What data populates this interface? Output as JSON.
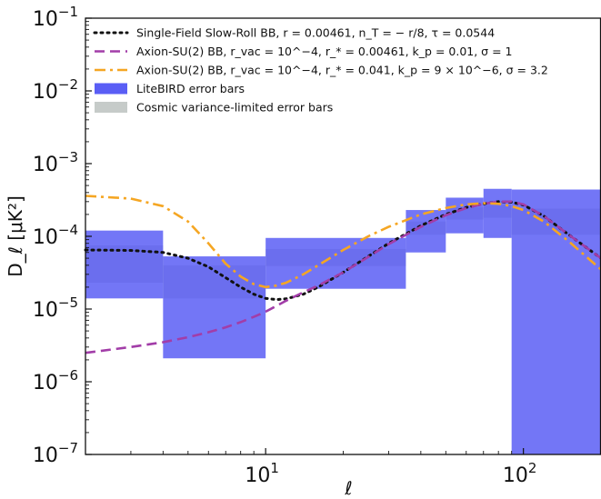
{
  "chart_data": {
    "type": "line",
    "title": "",
    "xlabel": "ℓ",
    "ylabel": "D_ℓ [μK²]",
    "xscale": "log",
    "yscale": "log",
    "xlim": [
      2,
      200
    ],
    "ylim": [
      1e-07,
      0.1
    ],
    "grid": false,
    "legend_position": "top-left",
    "x_ticks": [
      {
        "value": 10,
        "base": "10",
        "exp": "1"
      },
      {
        "value": 100,
        "base": "10",
        "exp": "2"
      }
    ],
    "y_ticks": [
      {
        "value": 1e-07,
        "base": "10",
        "exp": "−7"
      },
      {
        "value": 1e-06,
        "base": "10",
        "exp": "−6"
      },
      {
        "value": 1e-05,
        "base": "10",
        "exp": "−5"
      },
      {
        "value": 0.0001,
        "base": "10",
        "exp": "−4"
      },
      {
        "value": 0.001,
        "base": "10",
        "exp": "−3"
      },
      {
        "value": 0.01,
        "base": "10",
        "exp": "−2"
      },
      {
        "value": 0.1,
        "base": "10",
        "exp": "−1"
      }
    ],
    "series": [
      {
        "name": "Single-Field Slow-Roll BB, r = 0.00461, n_T = − r/8, τ = 0.0544",
        "style": "dotted",
        "color": "#111111",
        "x": [
          2,
          3,
          4,
          5,
          6,
          7,
          8,
          9,
          10,
          11,
          12,
          14,
          16,
          20,
          25,
          30,
          40,
          50,
          60,
          70,
          80,
          90,
          100,
          120,
          150,
          200
        ],
        "y": [
          6.5e-05,
          6.4e-05,
          6e-05,
          5e-05,
          3.8e-05,
          2.7e-05,
          2e-05,
          1.6e-05,
          1.4e-05,
          1.35e-05,
          1.38e-05,
          1.6e-05,
          2e-05,
          3.2e-05,
          5.3e-05,
          8e-05,
          0.00014,
          0.0002,
          0.00025,
          0.00028,
          0.0003,
          0.000295,
          0.00027,
          0.00019,
          0.000105,
          5e-05
        ]
      },
      {
        "name": "Axion-SU(2) BB, r_vac = 10^−4, r_* = 0.00461, k_p = 0.01, σ = 1",
        "style": "dashed",
        "color": "#a23da8",
        "x": [
          2,
          3,
          4,
          5,
          6,
          7,
          8,
          9,
          10,
          12,
          14,
          16,
          20,
          25,
          30,
          40,
          50,
          60,
          70,
          80,
          90,
          100,
          120,
          150,
          200
        ],
        "y": [
          2.5e-06,
          3e-06,
          3.5e-06,
          4.1e-06,
          4.8e-06,
          5.6e-06,
          6.6e-06,
          7.8e-06,
          9.2e-06,
          1.3e-05,
          1.7e-05,
          2.1e-05,
          3.2e-05,
          5.2e-05,
          7.8e-05,
          0.000135,
          0.000195,
          0.000245,
          0.00028,
          0.0003,
          0.0003,
          0.000275,
          0.00019,
          0.000105,
          5e-05
        ]
      },
      {
        "name": "Axion-SU(2) BB, r_vac = 10^−4, r_* = 0.041, k_p = 9 × 10^−6, σ = 3.2",
        "style": "dashdot",
        "color": "#f5a623",
        "x": [
          2,
          3,
          4,
          5,
          6,
          7,
          8,
          9,
          10,
          11,
          12,
          14,
          16,
          20,
          25,
          30,
          40,
          50,
          60,
          70,
          80,
          90,
          100,
          120,
          150,
          200
        ],
        "y": [
          0.00036,
          0.00033,
          0.00026,
          0.00016,
          8e-05,
          4.2e-05,
          2.8e-05,
          2.2e-05,
          2e-05,
          2.1e-05,
          2.3e-05,
          3e-05,
          4e-05,
          6.5e-05,
          0.0001,
          0.000135,
          0.0002,
          0.000245,
          0.000275,
          0.000285,
          0.00028,
          0.00026,
          0.00023,
          0.00016,
          8.5e-05,
          3.5e-05
        ]
      }
    ],
    "error_bars": [
      {
        "name": "LiteBIRD error bars",
        "color": "#5a5ef5",
        "bins": [
          {
            "x0": 2,
            "x1": 4,
            "y0": 1.4e-05,
            "y1": 0.00012
          },
          {
            "x0": 4,
            "x1": 10,
            "y0": 2.1e-06,
            "y1": 5.3e-05
          },
          {
            "x0": 10,
            "x1": 35,
            "y0": 1.9e-05,
            "y1": 9.5e-05
          },
          {
            "x0": 35,
            "x1": 50,
            "y0": 6e-05,
            "y1": 0.00023
          },
          {
            "x0": 50,
            "x1": 70,
            "y0": 0.00011,
            "y1": 0.00034
          },
          {
            "x0": 70,
            "x1": 90,
            "y0": 9.5e-05,
            "y1": 0.00045
          },
          {
            "x0": 90,
            "x1": 200,
            "y0": 1e-07,
            "y1": 0.00044
          }
        ]
      },
      {
        "name": "Cosmic variance-limited error bars",
        "color": "#c6cbc9",
        "bins": [
          {
            "x0": 2,
            "x1": 4,
            "y0": 2.3e-05,
            "y1": 7.5e-05
          },
          {
            "x0": 4,
            "x1": 10,
            "y0": 1.4e-05,
            "y1": 4e-05
          },
          {
            "x0": 10,
            "x1": 35,
            "y0": 3.9e-05,
            "y1": 6.7e-05
          },
          {
            "x0": 35,
            "x1": 50,
            "y0": 0.000105,
            "y1": 0.00016
          },
          {
            "x0": 50,
            "x1": 70,
            "y0": 0.00017,
            "y1": 0.00025
          },
          {
            "x0": 70,
            "x1": 90,
            "y0": 0.00018,
            "y1": 0.00027
          },
          {
            "x0": 90,
            "x1": 200,
            "y0": 0.000105,
            "y1": 0.00024
          }
        ]
      }
    ],
    "legend": [
      {
        "kind": "line",
        "style": "dotted",
        "color": "#111111",
        "text": "Single-Field Slow-Roll BB, r = 0.00461, n_T = − r/8, τ = 0.0544"
      },
      {
        "kind": "line",
        "style": "dashed",
        "color": "#a23da8",
        "text": "Axion-SU(2) BB, r_vac = 10^−4, r_* = 0.00461, k_p = 0.01, σ = 1"
      },
      {
        "kind": "line",
        "style": "dashdot",
        "color": "#f5a623",
        "text": "Axion-SU(2) BB, r_vac = 10^−4, r_* = 0.041, k_p = 9 × 10^−6, σ = 3.2"
      },
      {
        "kind": "patch",
        "color": "#5a5ef5",
        "text": "LiteBIRD error bars"
      },
      {
        "kind": "patch",
        "color": "#c6cbc9",
        "text": "Cosmic variance-limited error bars"
      }
    ]
  }
}
